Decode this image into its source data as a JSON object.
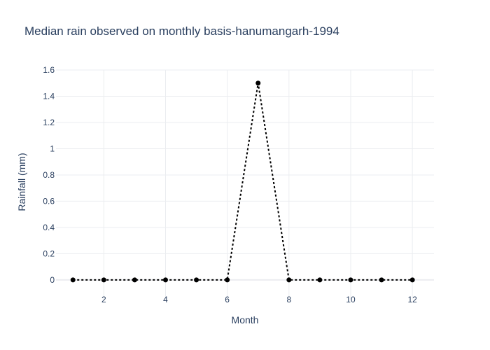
{
  "chart_data": {
    "type": "line",
    "title": "Median rain observed on monthly basis-hanumangarh-1994",
    "xlabel": "Month",
    "ylabel": "Rainfall (mm)",
    "xlim": [
      0.45,
      12.7
    ],
    "ylim": [
      -0.15,
      1.6
    ],
    "x_ticks": [
      2,
      4,
      6,
      8,
      10,
      12
    ],
    "y_ticks": [
      0,
      0.2,
      0.4,
      0.6,
      0.8,
      1,
      1.2,
      1.4,
      1.6
    ],
    "grid": true,
    "x": [
      1,
      2,
      3,
      4,
      5,
      6,
      7,
      8,
      9,
      10,
      11,
      12
    ],
    "series": [
      {
        "values": [
          0,
          0,
          0,
          0,
          0,
          0,
          1.5,
          0,
          0,
          0,
          0,
          0
        ],
        "color": "#000000",
        "line_style": "dotted",
        "markers": true
      }
    ]
  }
}
